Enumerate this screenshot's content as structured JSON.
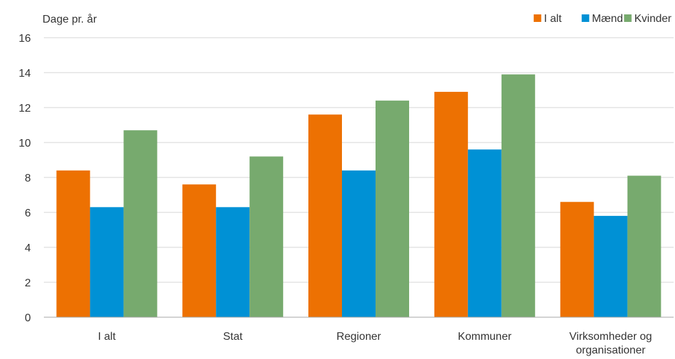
{
  "chart_data": {
    "type": "bar",
    "ylabel": "Dage pr. år",
    "xlabel": "",
    "ylim": [
      0,
      16
    ],
    "yticks": [
      0,
      2,
      4,
      6,
      8,
      10,
      12,
      14,
      16
    ],
    "grid": true,
    "legend_position": "top-right",
    "categories": [
      "I alt",
      "Stat",
      "Regioner",
      "Kommuner",
      "Virksomheder og organisationer"
    ],
    "series": [
      {
        "name": "I alt",
        "color": "#ED7102",
        "values": [
          8.4,
          7.6,
          11.6,
          12.9,
          6.6
        ]
      },
      {
        "name": "Mænd",
        "color": "#0091D5",
        "values": [
          6.3,
          6.3,
          8.4,
          9.6,
          5.8
        ]
      },
      {
        "name": "Kvinder",
        "color": "#77AA6E",
        "values": [
          10.7,
          9.2,
          12.4,
          13.9,
          8.1
        ]
      }
    ]
  }
}
